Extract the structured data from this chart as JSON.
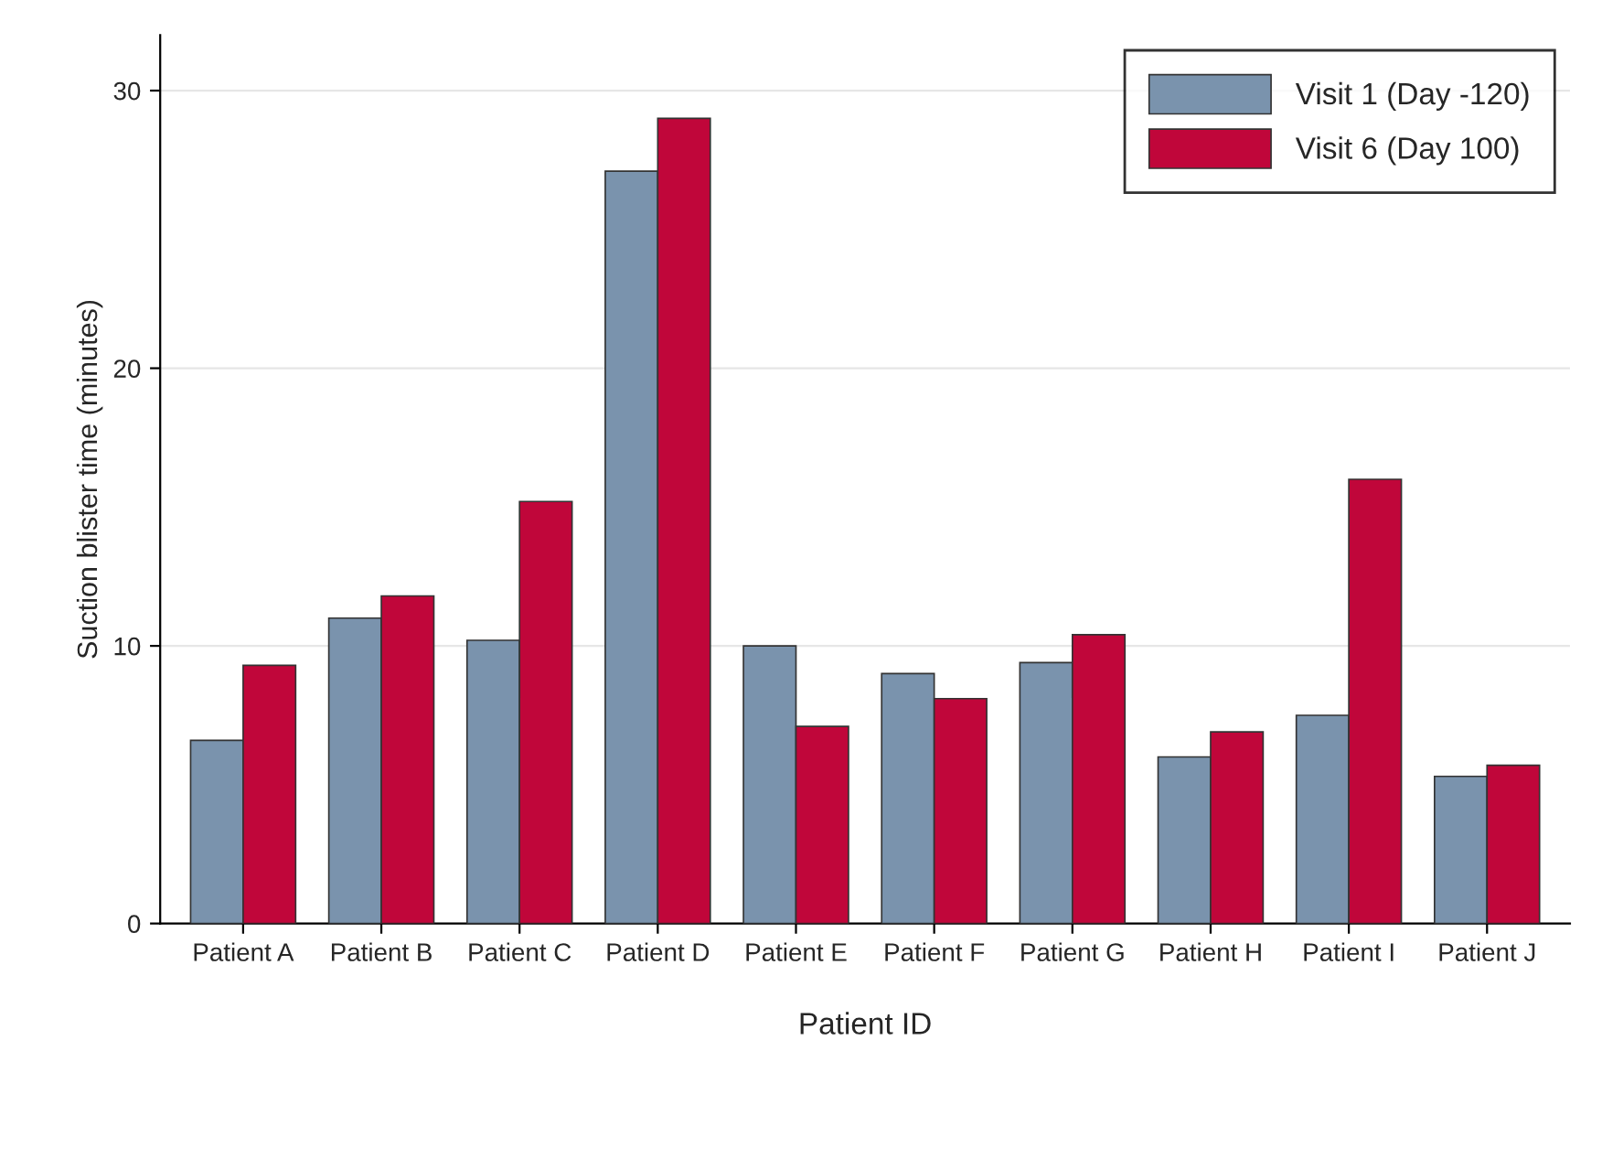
{
  "chart_data": {
    "type": "bar",
    "xlabel": "Patient ID",
    "ylabel": "Suction blister time (minutes)",
    "categories": [
      "Patient A",
      "Patient B",
      "Patient C",
      "Patient D",
      "Patient E",
      "Patient F",
      "Patient G",
      "Patient H",
      "Patient I",
      "Patient J"
    ],
    "series": [
      {
        "name": "Visit 1 (Day -120)",
        "color": "#7a93ad",
        "values": [
          6.6,
          11.0,
          10.2,
          27.1,
          10.0,
          9.0,
          9.4,
          6.0,
          7.5,
          5.3
        ]
      },
      {
        "name": "Visit 6 (Day 100)",
        "color": "#c0063a",
        "values": [
          9.3,
          11.8,
          15.2,
          29.0,
          7.1,
          8.1,
          10.4,
          6.9,
          16.0,
          5.7
        ]
      }
    ],
    "ylim": [
      0,
      32
    ],
    "yticks": [
      0,
      10,
      20,
      30
    ],
    "grid": "y",
    "legend": "top right"
  }
}
